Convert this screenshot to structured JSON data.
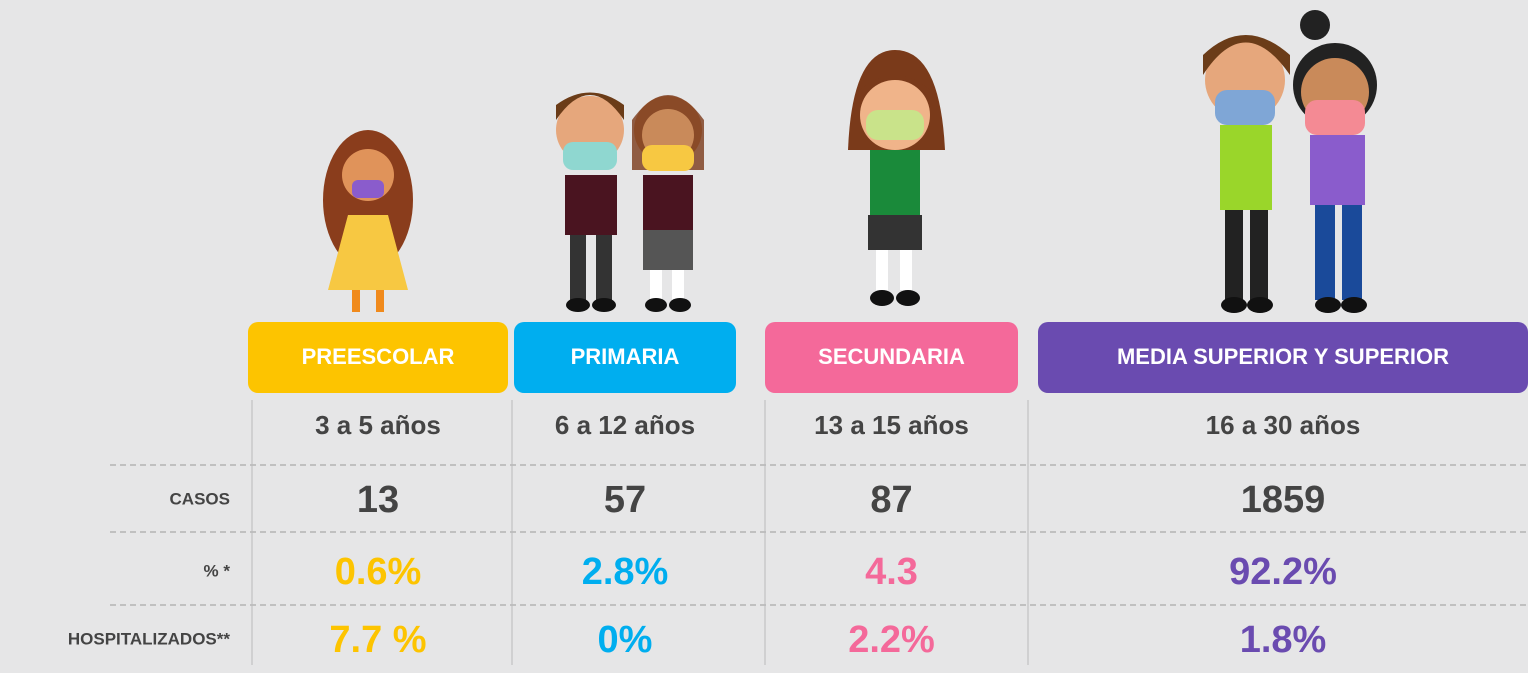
{
  "columns": [
    {
      "label": "PREESCOLAR",
      "ages": "3 a 5 años",
      "color": "#fdc400"
    },
    {
      "label": "PRIMARIA",
      "ages": "6 a 12 años",
      "color": "#00aeef"
    },
    {
      "label": "SECUNDARIA",
      "ages": "13 a 15 años",
      "color": "#f4699a"
    },
    {
      "label": "MEDIA SUPERIOR Y SUPERIOR",
      "ages": "16 a 30 años",
      "color": "#6a4bb0"
    }
  ],
  "rows": [
    {
      "label": "CASOS",
      "values": [
        "13",
        "57",
        "87",
        "1859"
      ]
    },
    {
      "label": "% *",
      "values": [
        "0.6%",
        "2.8%",
        "4.3",
        "92.2%"
      ]
    },
    {
      "label": "HOSPITALIZADOS**",
      "values": [
        "7.7 %",
        "0%",
        "2.2%",
        "1.8%"
      ]
    }
  ]
}
